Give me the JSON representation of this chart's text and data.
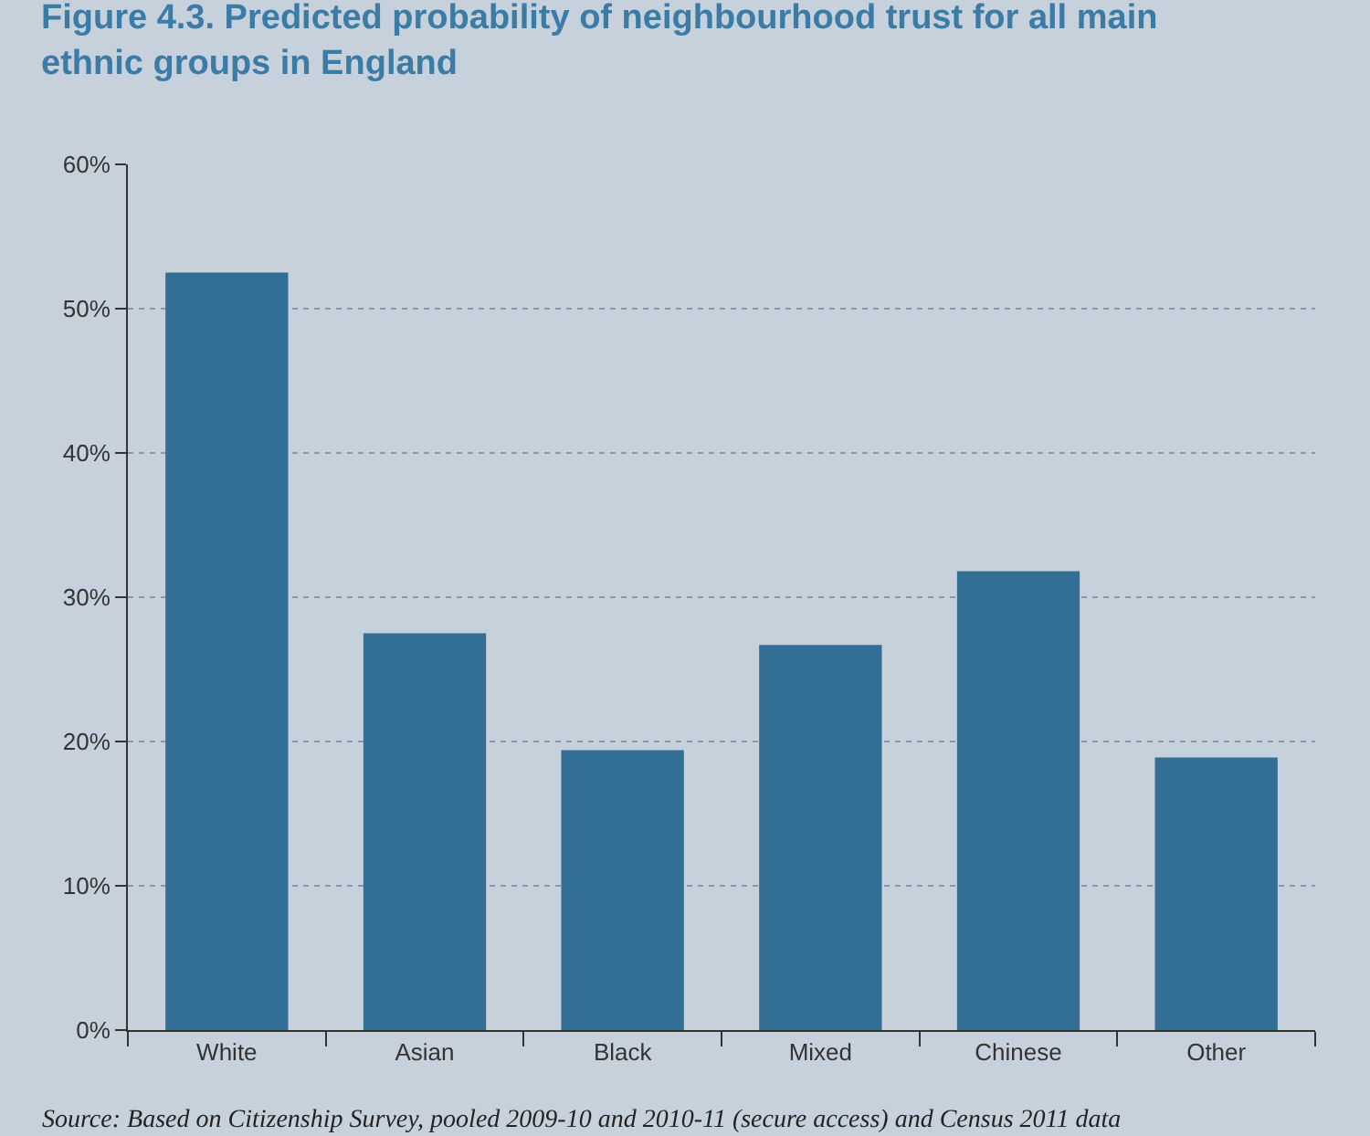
{
  "chart_data": {
    "type": "bar",
    "title": "Figure 4.3. Predicted probability of neighbourhood trust for all main ethnic groups in England",
    "categories": [
      "White",
      "Asian",
      "Black",
      "Mixed",
      "Chinese",
      "Other"
    ],
    "values": [
      52.5,
      27.5,
      19.4,
      26.7,
      31.8,
      18.9
    ],
    "color": "#336f94",
    "ylim": [
      0,
      60
    ],
    "yticks": [
      {
        "value": 0,
        "label": "0%"
      },
      {
        "value": 10,
        "label": "10%"
      },
      {
        "value": 20,
        "label": "20%"
      },
      {
        "value": 30,
        "label": "30%"
      },
      {
        "value": 40,
        "label": "40%"
      },
      {
        "value": 50,
        "label": "50%"
      },
      {
        "value": 60,
        "label": "60%"
      }
    ],
    "grid": "y",
    "annotations": [
      "Source: Based on Citizenship Survey, pooled 2009-10 and 2010-11 (secure access) and Census 2011 data"
    ]
  }
}
